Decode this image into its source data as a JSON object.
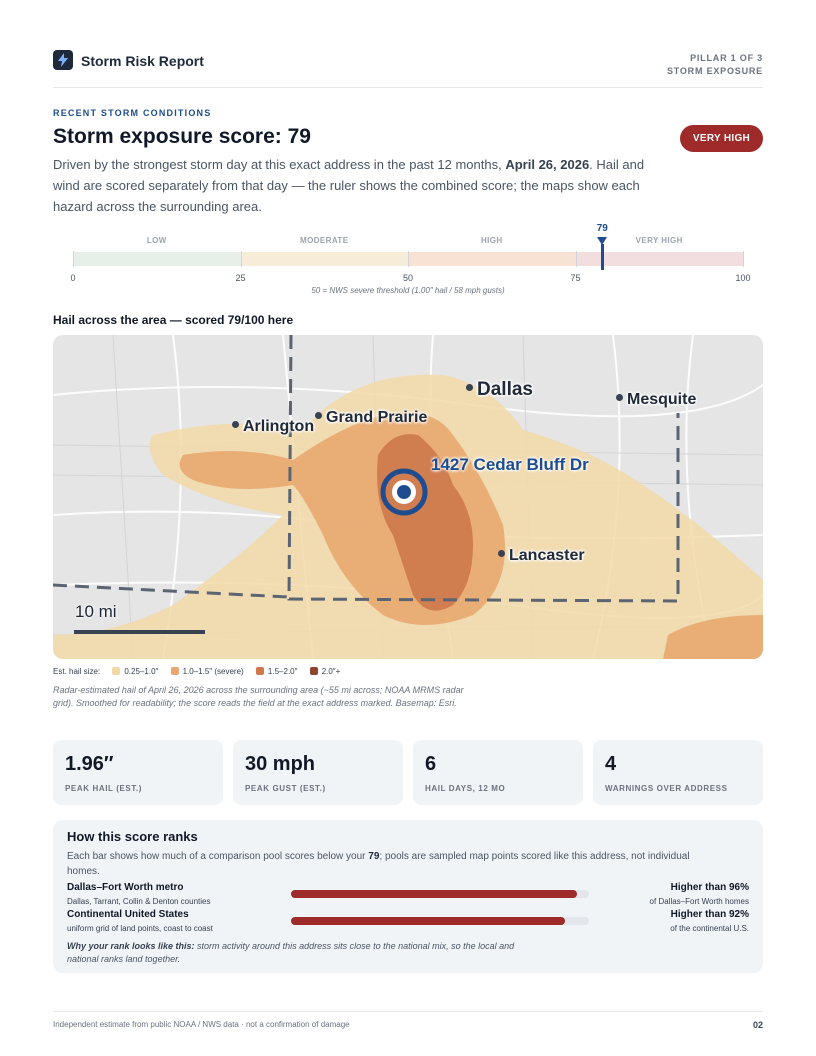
{
  "header": {
    "brand": "Storm Risk Report",
    "pillar_line1": "PILLAR 1 OF 3",
    "pillar_line2": "STORM EXPOSURE"
  },
  "section": {
    "eyebrow": "RECENT STORM CONDITIONS",
    "title": "Storm exposure score: 79",
    "badge": "VERY HIGH",
    "lede_part1": "Driven by the strongest storm day at this exact address in the past 12 months, ",
    "lede_date": "April 26, 2026",
    "lede_part2": ". Hail and wind are scored separately from that day — the ruler shows the combined score; the maps show each hazard across the surrounding area."
  },
  "ruler": {
    "score": 79,
    "score_label": "79",
    "min": 0,
    "max": 100,
    "bands": [
      {
        "label": "LOW",
        "from": 0,
        "to": 25,
        "color": "#e6f0e8"
      },
      {
        "label": "MODERATE",
        "from": 25,
        "to": 50,
        "color": "#f6ecd7"
      },
      {
        "label": "HIGH",
        "from": 50,
        "to": 75,
        "color": "#f7e2d4"
      },
      {
        "label": "VERY HIGH",
        "from": 75,
        "to": 100,
        "color": "#f2dede"
      }
    ],
    "ticks": [
      "0",
      "25",
      "50",
      "75",
      "100"
    ],
    "note": "50 = NWS severe threshold (1.00″ hail / 58 mph gusts)"
  },
  "map": {
    "title": "Hail across the area — scored 79/100 here",
    "address": "1427 Cedar Bluff Dr",
    "scale_label": "10 mi",
    "cities": [
      "Dallas",
      "Mesquite",
      "Arlington",
      "Grand Prairie",
      "Lancaster"
    ]
  },
  "legend": {
    "title": "Est. hail size:",
    "items": [
      {
        "label": "0.25–1.0″",
        "color": "#f3d9a8"
      },
      {
        "label": "1.0–1.5″ (severe)",
        "color": "#e8a870"
      },
      {
        "label": "1.5–2.0″",
        "color": "#cf7a4e"
      },
      {
        "label": "2.0″+",
        "color": "#8f4530"
      }
    ],
    "caption": "Radar-estimated hail of April 26, 2026 across the surrounding area (~55 mi across; NOAA MRMS radar grid). Smoothed for readability; the score reads the field at the exact address marked. Basemap: Esri."
  },
  "stats": [
    {
      "value": "1.96″",
      "label": "PEAK HAIL (EST.)"
    },
    {
      "value": "30 mph",
      "label": "PEAK GUST (EST.)"
    },
    {
      "value": "6",
      "label": "HAIL DAYS, 12 MO"
    },
    {
      "value": "4",
      "label": "WARNINGS OVER ADDRESS"
    }
  ],
  "rank": {
    "title": "How this score ranks",
    "desc_part1": "Each bar shows how much of a comparison pool scores below your ",
    "desc_score": "79",
    "desc_part2": "; pools are sampled map points scored like this address, not individual homes.",
    "rows": [
      {
        "name": "Dallas–Fort Worth metro",
        "sub": "Dallas, Tarrant, Collin & Denton counties",
        "percent": 96,
        "value": "Higher than 96%",
        "value_sub": "of Dallas–Fort Worth homes"
      },
      {
        "name": "Continental United States",
        "sub": "uniform grid of land points, coast to coast",
        "percent": 92,
        "value": "Higher than 92%",
        "value_sub": "of the continental U.S."
      }
    ],
    "why_label": "Why your rank looks like this:",
    "why_text": " storm activity around this address sits close to the national mix, so the local and national ranks land together."
  },
  "footer": {
    "left": "Independent estimate from public NOAA / NWS data · not a confirmation of damage",
    "page": "02"
  }
}
